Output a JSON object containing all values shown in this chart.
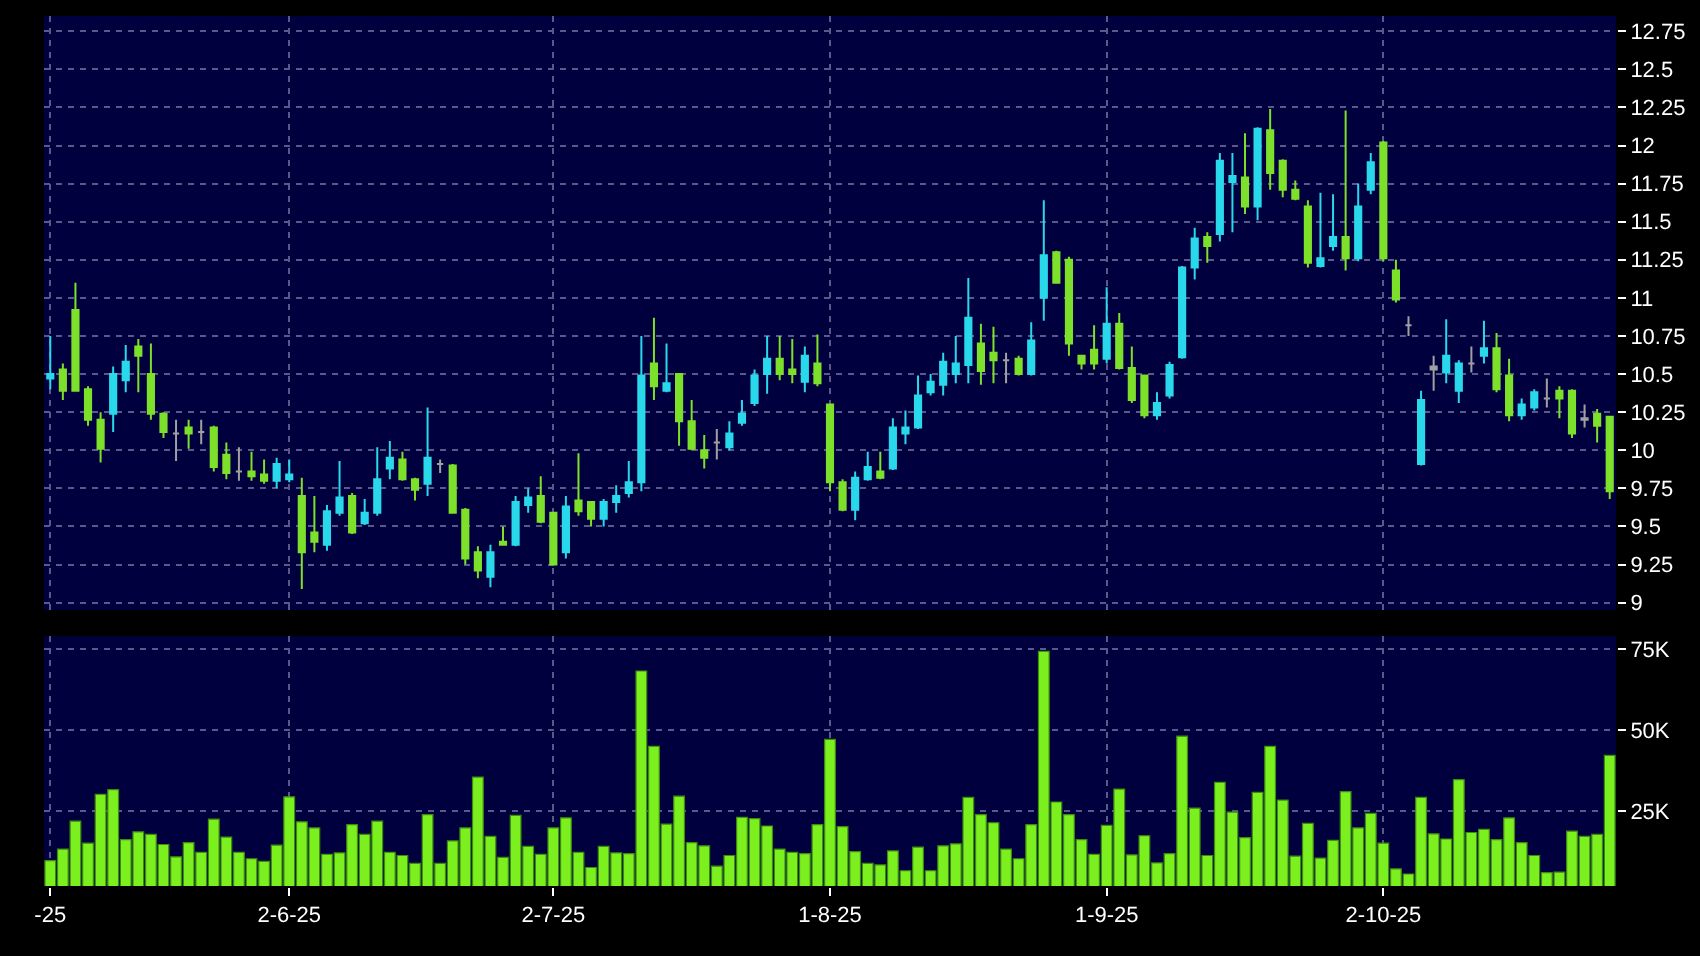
{
  "chart_data": [
    {
      "type": "candlestick",
      "tick_labels": "y",
      "grid": true,
      "ohlc": [
        [
          10.47,
          10.75,
          10.4,
          10.5
        ],
        [
          10.53,
          10.57,
          10.33,
          10.39
        ],
        [
          10.92,
          11.1,
          10.39,
          10.39
        ],
        [
          10.4,
          10.42,
          10.16,
          10.2
        ],
        [
          10.2,
          10.25,
          9.92,
          10.01
        ],
        [
          10.24,
          10.55,
          10.12,
          10.5
        ],
        [
          10.46,
          10.69,
          10.38,
          10.58
        ],
        [
          10.68,
          10.73,
          10.38,
          10.62
        ],
        [
          10.5,
          10.7,
          10.2,
          10.24
        ],
        [
          10.24,
          10.25,
          10.08,
          10.12
        ],
        [
          10.11,
          10.2,
          9.93,
          10.11
        ],
        [
          10.15,
          10.2,
          10.01,
          10.11
        ],
        [
          10.12,
          10.2,
          10.04,
          10.12
        ],
        [
          10.15,
          10.16,
          9.86,
          9.89
        ],
        [
          9.97,
          10.05,
          9.81,
          9.85
        ],
        [
          9.86,
          10.02,
          9.8,
          9.86
        ],
        [
          9.86,
          9.99,
          9.8,
          9.83
        ],
        [
          9.84,
          9.94,
          9.78,
          9.8
        ],
        [
          9.8,
          9.95,
          9.75,
          9.91
        ],
        [
          9.81,
          9.94,
          9.79,
          9.84
        ],
        [
          9.7,
          9.82,
          9.09,
          9.33
        ],
        [
          9.46,
          9.7,
          9.33,
          9.4
        ],
        [
          9.38,
          9.64,
          9.34,
          9.6
        ],
        [
          9.59,
          9.93,
          9.57,
          9.69
        ],
        [
          9.7,
          9.72,
          9.45,
          9.46
        ],
        [
          9.52,
          9.68,
          9.51,
          9.59
        ],
        [
          9.59,
          10.02,
          9.57,
          9.81
        ],
        [
          9.88,
          10.06,
          9.81,
          9.95
        ],
        [
          9.94,
          9.99,
          9.8,
          9.81
        ],
        [
          9.81,
          9.82,
          9.67,
          9.74
        ],
        [
          9.78,
          10.28,
          9.7,
          9.95
        ],
        [
          9.91,
          9.94,
          9.85,
          9.91
        ],
        [
          9.9,
          9.91,
          9.59,
          9.59
        ],
        [
          9.61,
          9.62,
          9.25,
          9.29
        ],
        [
          9.33,
          9.37,
          9.16,
          9.21
        ],
        [
          9.17,
          9.38,
          9.1,
          9.33
        ],
        [
          9.4,
          9.5,
          9.38,
          9.38
        ],
        [
          9.38,
          9.7,
          9.37,
          9.66
        ],
        [
          9.64,
          9.75,
          9.59,
          9.69
        ],
        [
          9.7,
          9.83,
          9.52,
          9.53
        ],
        [
          9.59,
          9.59,
          9.25,
          9.25
        ],
        [
          9.33,
          9.7,
          9.29,
          9.63
        ],
        [
          9.67,
          9.98,
          9.57,
          9.6
        ],
        [
          9.66,
          9.66,
          9.5,
          9.55
        ],
        [
          9.55,
          9.68,
          9.5,
          9.66
        ],
        [
          9.66,
          9.77,
          9.59,
          9.7
        ],
        [
          9.72,
          9.93,
          9.69,
          9.79
        ],
        [
          9.79,
          10.75,
          9.73,
          10.49
        ],
        [
          10.57,
          10.87,
          10.33,
          10.42
        ],
        [
          10.39,
          10.7,
          10.38,
          10.44
        ],
        [
          10.5,
          10.5,
          10.03,
          10.19
        ],
        [
          10.19,
          10.33,
          10.0,
          10.01
        ],
        [
          10.0,
          10.1,
          9.88,
          9.95
        ],
        [
          10.05,
          10.14,
          9.94,
          10.05
        ],
        [
          10.02,
          10.19,
          10.0,
          10.11
        ],
        [
          10.18,
          10.33,
          10.16,
          10.24
        ],
        [
          10.31,
          10.53,
          10.29,
          10.49
        ],
        [
          10.5,
          10.75,
          10.37,
          10.6
        ],
        [
          10.6,
          10.75,
          10.46,
          10.5
        ],
        [
          10.53,
          10.73,
          10.44,
          10.5
        ],
        [
          10.45,
          10.68,
          10.38,
          10.62
        ],
        [
          10.57,
          10.76,
          10.42,
          10.44
        ],
        [
          10.3,
          10.3,
          9.73,
          9.79
        ],
        [
          9.79,
          9.81,
          9.6,
          9.61
        ],
        [
          9.61,
          9.86,
          9.54,
          9.82
        ],
        [
          9.81,
          9.99,
          9.8,
          9.89
        ],
        [
          9.86,
          9.99,
          9.81,
          9.82
        ],
        [
          9.88,
          10.21,
          9.87,
          10.15
        ],
        [
          10.11,
          10.26,
          10.04,
          10.15
        ],
        [
          10.15,
          10.49,
          10.14,
          10.36
        ],
        [
          10.38,
          10.5,
          10.36,
          10.45
        ],
        [
          10.43,
          10.64,
          10.36,
          10.58
        ],
        [
          10.5,
          10.75,
          10.44,
          10.57
        ],
        [
          10.56,
          11.13,
          10.44,
          10.87
        ],
        [
          10.7,
          10.83,
          10.43,
          10.52
        ],
        [
          10.64,
          10.81,
          10.44,
          10.59
        ],
        [
          10.59,
          10.64,
          10.44,
          10.59
        ],
        [
          10.6,
          10.62,
          10.49,
          10.5
        ],
        [
          10.5,
          10.84,
          10.49,
          10.72
        ],
        [
          11.0,
          11.64,
          10.85,
          11.28
        ],
        [
          11.3,
          11.31,
          11.1,
          11.1
        ],
        [
          11.25,
          11.27,
          10.62,
          10.7
        ],
        [
          10.62,
          10.62,
          10.53,
          10.57
        ],
        [
          10.66,
          10.82,
          10.53,
          10.57
        ],
        [
          10.6,
          11.07,
          10.57,
          10.83
        ],
        [
          10.83,
          10.9,
          10.53,
          10.54
        ],
        [
          10.54,
          10.68,
          10.31,
          10.33
        ],
        [
          10.49,
          10.49,
          10.21,
          10.23
        ],
        [
          10.23,
          10.38,
          10.2,
          10.31
        ],
        [
          10.36,
          10.58,
          10.34,
          10.56
        ],
        [
          10.61,
          11.21,
          10.6,
          11.2
        ],
        [
          11.2,
          11.46,
          11.12,
          11.39
        ],
        [
          11.4,
          11.43,
          11.23,
          11.34
        ],
        [
          11.42,
          11.95,
          11.37,
          11.9
        ],
        [
          11.76,
          11.95,
          11.43,
          11.8
        ],
        [
          11.79,
          12.08,
          11.55,
          11.6
        ],
        [
          11.6,
          12.12,
          11.51,
          12.11
        ],
        [
          12.1,
          12.24,
          11.71,
          11.82
        ],
        [
          11.9,
          11.91,
          11.66,
          11.71
        ],
        [
          11.71,
          11.77,
          11.64,
          11.65
        ],
        [
          11.6,
          11.64,
          11.2,
          11.23
        ],
        [
          11.21,
          11.69,
          11.2,
          11.26
        ],
        [
          11.34,
          11.68,
          11.31,
          11.4
        ],
        [
          11.4,
          12.23,
          11.18,
          11.26
        ],
        [
          11.26,
          11.75,
          11.24,
          11.6
        ],
        [
          11.71,
          11.95,
          11.68,
          11.89
        ],
        [
          12.02,
          12.03,
          11.24,
          11.26
        ],
        [
          11.18,
          11.25,
          10.97,
          10.99
        ],
        [
          10.82,
          10.88,
          10.75,
          10.82
        ],
        [
          9.91,
          10.39,
          9.9,
          10.33
        ],
        [
          10.53,
          10.62,
          10.39,
          10.55
        ],
        [
          10.51,
          10.86,
          10.44,
          10.62
        ],
        [
          10.39,
          10.59,
          10.31,
          10.57
        ],
        [
          10.57,
          10.68,
          10.51,
          10.57
        ],
        [
          10.62,
          10.85,
          10.57,
          10.67
        ],
        [
          10.67,
          10.77,
          10.38,
          10.4
        ],
        [
          10.49,
          10.6,
          10.19,
          10.23
        ],
        [
          10.23,
          10.34,
          10.2,
          10.3
        ],
        [
          10.28,
          10.4,
          10.26,
          10.38
        ],
        [
          10.34,
          10.47,
          10.28,
          10.34
        ],
        [
          10.39,
          10.42,
          10.21,
          10.34
        ],
        [
          10.39,
          10.4,
          10.08,
          10.11
        ],
        [
          10.21,
          10.3,
          10.15,
          10.2
        ],
        [
          10.24,
          10.27,
          10.05,
          10.16
        ],
        [
          10.22,
          10.22,
          9.68,
          9.73
        ]
      ],
      "colors": [
        "#29d8ea",
        "#7de02a",
        "#7de02a",
        "#7de02a",
        "#7de02a",
        "#29d8ea",
        "#29d8ea",
        "#7de02a",
        "#7de02a",
        "#7de02a",
        "#a0a0a0",
        "#7de02a",
        "#a0a0a0",
        "#7de02a",
        "#7de02a",
        "#a0a0a0",
        "#7de02a",
        "#7de02a",
        "#29d8ea",
        "#29d8ea",
        "#7de02a",
        "#7de02a",
        "#29d8ea",
        "#29d8ea",
        "#7de02a",
        "#29d8ea",
        "#29d8ea",
        "#29d8ea",
        "#7de02a",
        "#7de02a",
        "#29d8ea",
        "#a0a0a0",
        "#7de02a",
        "#7de02a",
        "#7de02a",
        "#29d8ea",
        "#7de02a",
        "#29d8ea",
        "#29d8ea",
        "#7de02a",
        "#7de02a",
        "#29d8ea",
        "#7de02a",
        "#7de02a",
        "#29d8ea",
        "#29d8ea",
        "#29d8ea",
        "#29d8ea",
        "#7de02a",
        "#29d8ea",
        "#7de02a",
        "#7de02a",
        "#7de02a",
        "#a0a0a0",
        "#29d8ea",
        "#29d8ea",
        "#29d8ea",
        "#29d8ea",
        "#7de02a",
        "#7de02a",
        "#29d8ea",
        "#7de02a",
        "#7de02a",
        "#7de02a",
        "#29d8ea",
        "#29d8ea",
        "#7de02a",
        "#29d8ea",
        "#29d8ea",
        "#29d8ea",
        "#29d8ea",
        "#29d8ea",
        "#29d8ea",
        "#29d8ea",
        "#7de02a",
        "#7de02a",
        "#a0a0a0",
        "#7de02a",
        "#29d8ea",
        "#29d8ea",
        "#7de02a",
        "#7de02a",
        "#7de02a",
        "#7de02a",
        "#29d8ea",
        "#7de02a",
        "#7de02a",
        "#7de02a",
        "#29d8ea",
        "#29d8ea",
        "#29d8ea",
        "#29d8ea",
        "#7de02a",
        "#29d8ea",
        "#29d8ea",
        "#7de02a",
        "#29d8ea",
        "#7de02a",
        "#7de02a",
        "#7de02a",
        "#7de02a",
        "#29d8ea",
        "#29d8ea",
        "#7de02a",
        "#29d8ea",
        "#29d8ea",
        "#7de02a",
        "#7de02a",
        "#a0a0a0",
        "#29d8ea",
        "#a0a0a0",
        "#29d8ea",
        "#29d8ea",
        "#a0a0a0",
        "#29d8ea",
        "#7de02a",
        "#7de02a",
        "#29d8ea",
        "#29d8ea",
        "#a0a0a0",
        "#7de02a",
        "#7de02a",
        "#a0a0a0",
        "#7de02a",
        "#7de02a"
      ],
      "ylim": [
        8.95,
        12.85
      ],
      "yticks": [
        9,
        9.25,
        9.5,
        9.75,
        10,
        10.25,
        10.5,
        10.75,
        11,
        11.25,
        11.5,
        11.75,
        12,
        12.25,
        12.5,
        12.75
      ]
    },
    {
      "type": "bar",
      "grid": true,
      "color": "#7cf01e",
      "categories": [
        "-25",
        null,
        null,
        null,
        null,
        null,
        null,
        null,
        null,
        null,
        null,
        null,
        null,
        null,
        null,
        null,
        null,
        null,
        null,
        "2-6-25",
        null,
        null,
        null,
        null,
        null,
        null,
        null,
        null,
        null,
        null,
        null,
        null,
        null,
        null,
        null,
        null,
        null,
        null,
        null,
        null,
        "2-7-25",
        null,
        null,
        null,
        null,
        null,
        null,
        null,
        null,
        null,
        null,
        null,
        null,
        null,
        null,
        null,
        null,
        null,
        null,
        null,
        null,
        null,
        "1-8-25",
        null,
        null,
        null,
        null,
        null,
        null,
        null,
        null,
        null,
        null,
        null,
        null,
        null,
        null,
        null,
        null,
        null,
        null,
        null,
        null,
        null,
        "1-9-25",
        null,
        null,
        null,
        null,
        null,
        null,
        null,
        null,
        null,
        null,
        null,
        null,
        null,
        null,
        null,
        null,
        null,
        null,
        null,
        null,
        null,
        "2-10-25",
        null,
        null,
        null,
        null,
        null,
        null,
        null,
        null,
        null,
        null,
        null,
        null,
        null,
        null,
        null,
        null,
        null,
        null
      ],
      "values": [
        9.8,
        13.4,
        22,
        15.2,
        30.3,
        31.7,
        16.3,
        18.7,
        17.9,
        14.8,
        11,
        15.4,
        12.4,
        22.6,
        17.1,
        12.4,
        10.4,
        9.6,
        14.6,
        29.5,
        21.8,
        19.9,
        11.8,
        12.2,
        20.9,
        17.9,
        22,
        12.4,
        11.4,
        9,
        24,
        9,
        15.9,
        19.9,
        35.6,
        17.3,
        10.8,
        23.8,
        14.2,
        11.8,
        19.9,
        23,
        12.4,
        7.7,
        14.2,
        12.2,
        12,
        68.3,
        45.1,
        21.1,
        29.7,
        15.4,
        14.4,
        8.1,
        11.4,
        23.2,
        22.8,
        20.5,
        13.4,
        12.4,
        12,
        20.9,
        47.2,
        20.3,
        12.6,
        9,
        8.5,
        12.8,
        6.7,
        14,
        6.7,
        14.4,
        15,
        29.3,
        24,
        21.5,
        13.4,
        10.4,
        20.9,
        74.4,
        27.9,
        24,
        16.3,
        11.8,
        20.7,
        31.9,
        11.6,
        17.5,
        9.1,
        12,
        48.2,
        26,
        11.4,
        34,
        24.8,
        16.9,
        30.9,
        45.1,
        28.5,
        11.2,
        21.3,
        10.6,
        16.1,
        31.1,
        19.9,
        24.4,
        15.2,
        7.3,
        5.7,
        29.3,
        18.1,
        16.5,
        34.8,
        18.5,
        19.5,
        16.3,
        23,
        15.4,
        11.4,
        6.1,
        6.3,
        18.9,
        17.3,
        17.9,
        42.3
      ],
      "ylim": [
        2,
        79
      ],
      "yticks": [
        {
          "value": 25,
          "label": "25K"
        },
        {
          "value": 50,
          "label": "50K"
        },
        {
          "value": 75,
          "label": "75K"
        }
      ]
    }
  ]
}
